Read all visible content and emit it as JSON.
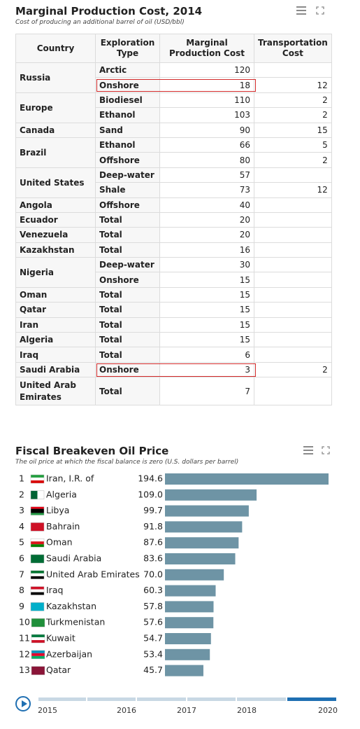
{
  "cost_panel": {
    "title": "Marginal Production Cost, 2014",
    "subtitle": "Cost of producing an additional barrel of oil (USD/bbl)",
    "menu_icon": "hamburger-menu-icon",
    "expand_icon": "fullscreen-icon"
  },
  "fiscal_panel": {
    "title": "Fiscal Breakeven Oil Price",
    "subtitle": "The oil price at which the fiscal balance is zero (U.S. dollars per barrel)",
    "menu_icon": "hamburger-menu-icon",
    "expand_icon": "fullscreen-icon",
    "bar_color": "#6e94a5"
  },
  "timeline": {
    "years": [
      "2015",
      "2016",
      "2017",
      "2018",
      "2020"
    ],
    "active_color": "#1f6fb2",
    "track_color": "#c8d8e4"
  },
  "chart_data": [
    {
      "type": "table",
      "title": "Marginal Production Cost, 2014",
      "subtitle": "Cost of producing an additional barrel of oil (USD/bbl)",
      "columns": [
        "Country",
        "Exploration Type",
        "Marginal Production Cost",
        "Transportation Cost"
      ],
      "highlight_color": "#d32a2a",
      "rows": [
        {
          "country": "Russia",
          "type": "Arctic",
          "mpc": "120",
          "tc": ""
        },
        {
          "country": "",
          "type": "Onshore",
          "mpc": "18",
          "tc": "12",
          "highlight": true
        },
        {
          "country": "Europe",
          "type": "Biodiesel",
          "mpc": "110",
          "tc": "2"
        },
        {
          "country": "",
          "type": "Ethanol",
          "mpc": "103",
          "tc": "2"
        },
        {
          "country": "Canada",
          "type": "Sand",
          "mpc": "90",
          "tc": "15"
        },
        {
          "country": "Brazil",
          "type": "Ethanol",
          "mpc": "66",
          "tc": "5"
        },
        {
          "country": "",
          "type": "Offshore",
          "mpc": "80",
          "tc": "2"
        },
        {
          "country": "United States",
          "type": "Deep-water",
          "mpc": "57",
          "tc": ""
        },
        {
          "country": "",
          "type": "Shale",
          "mpc": "73",
          "tc": "12"
        },
        {
          "country": "Angola",
          "type": "Offshore",
          "mpc": "40",
          "tc": ""
        },
        {
          "country": "Ecuador",
          "type": "Total",
          "mpc": "20",
          "tc": ""
        },
        {
          "country": "Venezuela",
          "type": "Total",
          "mpc": "20",
          "tc": ""
        },
        {
          "country": "Kazakhstan",
          "type": "Total",
          "mpc": "16",
          "tc": ""
        },
        {
          "country": "Nigeria",
          "type": "Deep-water",
          "mpc": "30",
          "tc": ""
        },
        {
          "country": "",
          "type": "Onshore",
          "mpc": "15",
          "tc": ""
        },
        {
          "country": "Oman",
          "type": "Total",
          "mpc": "15",
          "tc": ""
        },
        {
          "country": "Qatar",
          "type": "Total",
          "mpc": "15",
          "tc": ""
        },
        {
          "country": "Iran",
          "type": "Total",
          "mpc": "15",
          "tc": ""
        },
        {
          "country": "Algeria",
          "type": "Total",
          "mpc": "15",
          "tc": ""
        },
        {
          "country": "Iraq",
          "type": "Total",
          "mpc": "6",
          "tc": ""
        },
        {
          "country": "Saudi Arabia",
          "type": "Onshore",
          "mpc": "3",
          "tc": "2",
          "highlight": true
        },
        {
          "country": "United Arab Emirates",
          "type": "Total",
          "mpc": "7",
          "tc": ""
        }
      ]
    },
    {
      "type": "bar",
      "orientation": "horizontal",
      "title": "Fiscal Breakeven Oil Price",
      "subtitle": "The oil price at which the fiscal balance is zero (U.S. dollars per barrel)",
      "year": "2020",
      "xlim": [
        0,
        194.6
      ],
      "grid": false,
      "categories": [
        "Iran, I.R. of",
        "Algeria",
        "Libya",
        "Bahrain",
        "Oman",
        "Saudi Arabia",
        "United Arab Emirates",
        "Iraq",
        "Kazakhstan",
        "Turkmenistan",
        "Kuwait",
        "Azerbaijan",
        "Qatar"
      ],
      "ranks": [
        "1",
        "2",
        "3",
        "4",
        "5",
        "6",
        "7",
        "8",
        "9",
        "10",
        "11",
        "12",
        "13"
      ],
      "values": [
        194.6,
        109.0,
        99.7,
        91.8,
        87.6,
        83.6,
        70.0,
        60.3,
        57.8,
        57.6,
        54.7,
        53.4,
        45.7
      ],
      "value_labels": [
        "194.6",
        "109.0",
        "99.7",
        "91.8",
        "87.6",
        "83.6",
        "70.0",
        "60.3",
        "57.8",
        "57.6",
        "54.7",
        "53.4",
        "45.7"
      ],
      "flag_icons": [
        "iran-flag-icon",
        "algeria-flag-icon",
        "libya-flag-icon",
        "bahrain-flag-icon",
        "oman-flag-icon",
        "saudi-arabia-flag-icon",
        "uae-flag-icon",
        "iraq-flag-icon",
        "kazakhstan-flag-icon",
        "turkmenistan-flag-icon",
        "kuwait-flag-icon",
        "azerbaijan-flag-icon",
        "qatar-flag-icon"
      ]
    }
  ]
}
